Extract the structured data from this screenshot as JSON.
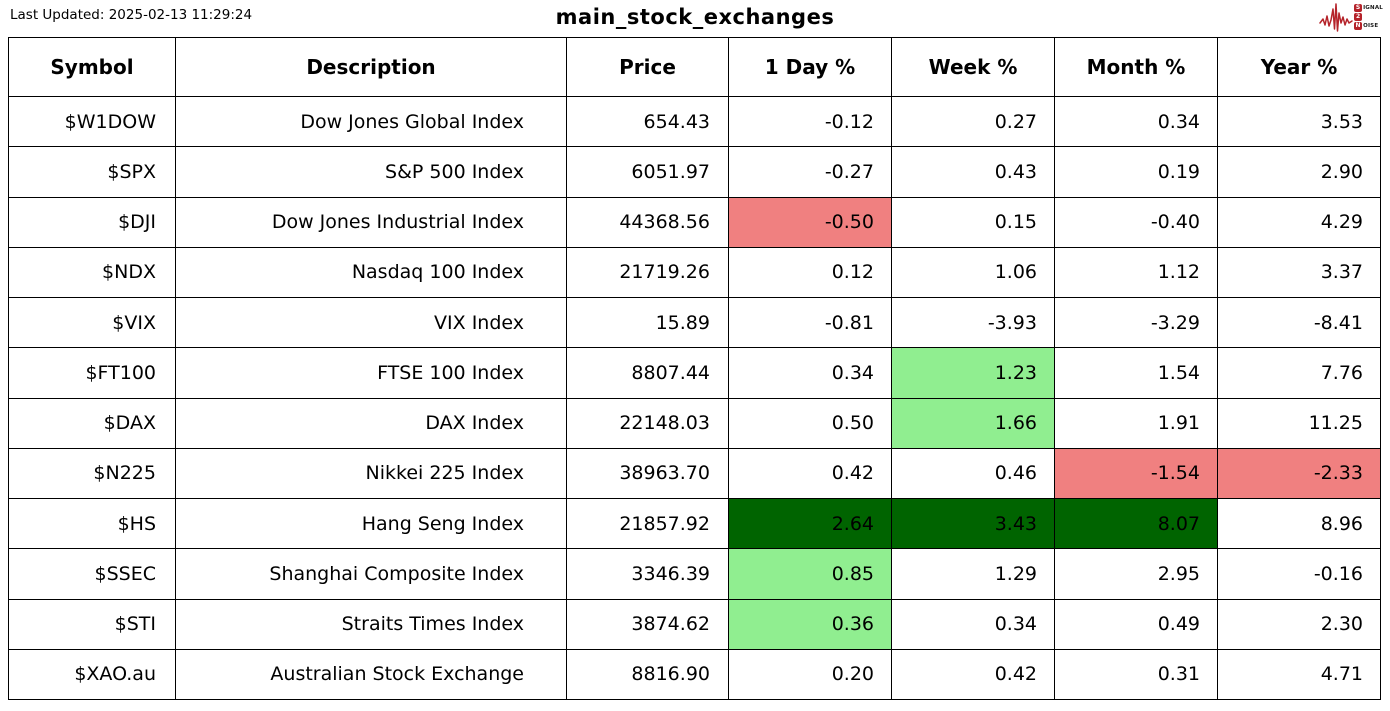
{
  "header": {
    "last_updated": "Last Updated: 2025-02-13 11:29:24",
    "title": "main_stock_exchanges",
    "logo": {
      "name": "signal-2-noise-logo",
      "line1_initial": "S",
      "line1_rest": "IGNAL",
      "line2": "2",
      "line3_initial": "N",
      "line3_rest": "OISE",
      "accent_color": "#b5232a"
    }
  },
  "colors": {
    "negative_highlight": "#F08080",
    "positive_highlight": "#90EE90",
    "strong_positive_highlight": "#006400",
    "border": "#000000",
    "background": "#ffffff"
  },
  "table": {
    "columns": [
      "Symbol",
      "Description",
      "Price",
      "1 Day %",
      "Week %",
      "Month %",
      "Year %"
    ],
    "column_keys": [
      "symbol",
      "description",
      "price",
      "day",
      "week",
      "month",
      "year"
    ],
    "rows": [
      {
        "symbol": "$W1DOW",
        "description": "Dow Jones Global Index",
        "price": "654.43",
        "day": "-0.12",
        "week": "0.27",
        "month": "0.34",
        "year": "3.53",
        "highlights": {}
      },
      {
        "symbol": "$SPX",
        "description": "S&P 500 Index",
        "price": "6051.97",
        "day": "-0.27",
        "week": "0.43",
        "month": "0.19",
        "year": "2.90",
        "highlights": {}
      },
      {
        "symbol": "$DJI",
        "description": "Dow Jones Industrial Index",
        "price": "44368.56",
        "day": "-0.50",
        "week": "0.15",
        "month": "-0.40",
        "year": "4.29",
        "highlights": {
          "day": "negative_highlight"
        }
      },
      {
        "symbol": "$NDX",
        "description": "Nasdaq 100 Index",
        "price": "21719.26",
        "day": "0.12",
        "week": "1.06",
        "month": "1.12",
        "year": "3.37",
        "highlights": {}
      },
      {
        "symbol": "$VIX",
        "description": "VIX Index",
        "price": "15.89",
        "day": "-0.81",
        "week": "-3.93",
        "month": "-3.29",
        "year": "-8.41",
        "highlights": {}
      },
      {
        "symbol": "$FT100",
        "description": "FTSE 100 Index",
        "price": "8807.44",
        "day": "0.34",
        "week": "1.23",
        "month": "1.54",
        "year": "7.76",
        "highlights": {
          "week": "positive_highlight"
        }
      },
      {
        "symbol": "$DAX",
        "description": "DAX Index",
        "price": "22148.03",
        "day": "0.50",
        "week": "1.66",
        "month": "1.91",
        "year": "11.25",
        "highlights": {
          "week": "positive_highlight"
        }
      },
      {
        "symbol": "$N225",
        "description": "Nikkei 225 Index",
        "price": "38963.70",
        "day": "0.42",
        "week": "0.46",
        "month": "-1.54",
        "year": "-2.33",
        "highlights": {
          "month": "negative_highlight",
          "year": "negative_highlight"
        }
      },
      {
        "symbol": "$HS",
        "description": "Hang Seng Index",
        "price": "21857.92",
        "day": "2.64",
        "week": "3.43",
        "month": "8.07",
        "year": "8.96",
        "highlights": {
          "day": "strong_positive_highlight",
          "week": "strong_positive_highlight",
          "month": "strong_positive_highlight"
        }
      },
      {
        "symbol": "$SSEC",
        "description": "Shanghai Composite Index",
        "price": "3346.39",
        "day": "0.85",
        "week": "1.29",
        "month": "2.95",
        "year": "-0.16",
        "highlights": {
          "day": "positive_highlight"
        }
      },
      {
        "symbol": "$STI",
        "description": "Straits Times Index",
        "price": "3874.62",
        "day": "0.36",
        "week": "0.34",
        "month": "0.49",
        "year": "2.30",
        "highlights": {
          "day": "positive_highlight"
        }
      },
      {
        "symbol": "$XAO.au",
        "description": "Australian Stock Exchange",
        "price": "8816.90",
        "day": "0.20",
        "week": "0.42",
        "month": "0.31",
        "year": "4.71",
        "highlights": {}
      }
    ]
  },
  "chart_data": {
    "type": "table",
    "title": "main_stock_exchanges",
    "columns": [
      "Symbol",
      "Description",
      "Price",
      "1 Day %",
      "Week %",
      "Month %",
      "Year %"
    ],
    "rows": [
      [
        "$W1DOW",
        "Dow Jones Global Index",
        654.43,
        -0.12,
        0.27,
        0.34,
        3.53
      ],
      [
        "$SPX",
        "S&P 500 Index",
        6051.97,
        -0.27,
        0.43,
        0.19,
        2.9
      ],
      [
        "$DJI",
        "Dow Jones Industrial Index",
        44368.56,
        -0.5,
        0.15,
        -0.4,
        4.29
      ],
      [
        "$NDX",
        "Nasdaq 100 Index",
        21719.26,
        0.12,
        1.06,
        1.12,
        3.37
      ],
      [
        "$VIX",
        "VIX Index",
        15.89,
        -0.81,
        -3.93,
        -3.29,
        -8.41
      ],
      [
        "$FT100",
        "FTSE 100 Index",
        8807.44,
        0.34,
        1.23,
        1.54,
        7.76
      ],
      [
        "$DAX",
        "DAX Index",
        22148.03,
        0.5,
        1.66,
        1.91,
        11.25
      ],
      [
        "$N225",
        "Nikkei 225 Index",
        38963.7,
        0.42,
        0.46,
        -1.54,
        -2.33
      ],
      [
        "$HS",
        "Hang Seng Index",
        21857.92,
        2.64,
        3.43,
        8.07,
        8.96
      ],
      [
        "$SSEC",
        "Shanghai Composite Index",
        3346.39,
        0.85,
        1.29,
        2.95,
        -0.16
      ],
      [
        "$STI",
        "Straits Times Index",
        3874.62,
        0.36,
        0.34,
        0.49,
        2.3
      ],
      [
        "$XAO.au",
        "Australian Stock Exchange",
        8816.9,
        0.2,
        0.42,
        0.31,
        4.71
      ]
    ]
  }
}
